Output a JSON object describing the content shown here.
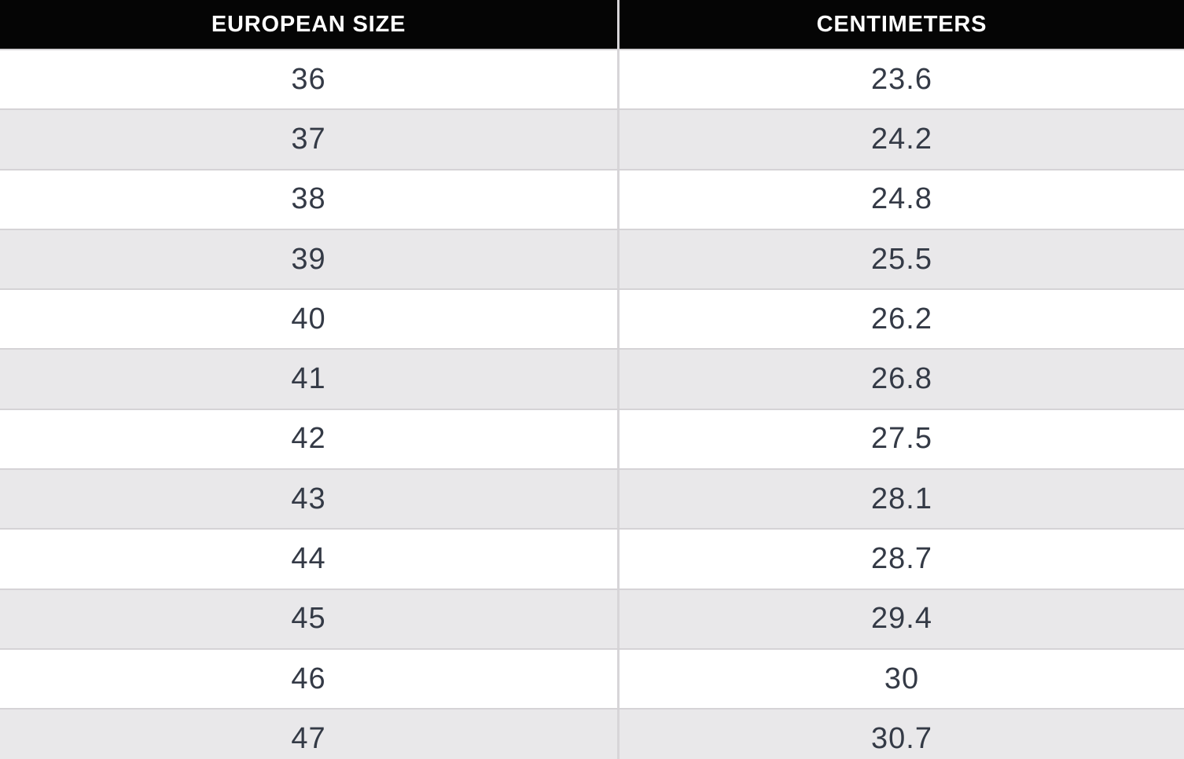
{
  "table": {
    "columns": [
      {
        "label": "EUROPEAN SIZE"
      },
      {
        "label": "CENTIMETERS"
      }
    ],
    "rows": [
      [
        "36",
        "23.6"
      ],
      [
        "37",
        "24.2"
      ],
      [
        "38",
        "24.8"
      ],
      [
        "39",
        "25.5"
      ],
      [
        "40",
        "26.2"
      ],
      [
        "41",
        "26.8"
      ],
      [
        "42",
        "27.5"
      ],
      [
        "43",
        "28.1"
      ],
      [
        "44",
        "28.7"
      ],
      [
        "45",
        "29.4"
      ],
      [
        "46",
        "30"
      ],
      [
        "47",
        "30.7"
      ]
    ]
  },
  "colors": {
    "header_bg": "#050505",
    "header_text": "#ffffff",
    "row_bg": "#ffffff",
    "row_alt_bg": "#e9e8ea",
    "border": "#d5d3d6",
    "cell_text": "#343a46"
  },
  "chart_data": {
    "type": "table",
    "columns": [
      "EUROPEAN SIZE",
      "CENTIMETERS"
    ],
    "rows": [
      [
        36,
        23.6
      ],
      [
        37,
        24.2
      ],
      [
        38,
        24.8
      ],
      [
        39,
        25.5
      ],
      [
        40,
        26.2
      ],
      [
        41,
        26.8
      ],
      [
        42,
        27.5
      ],
      [
        43,
        28.1
      ],
      [
        44,
        28.7
      ],
      [
        45,
        29.4
      ],
      [
        46,
        30
      ],
      [
        47,
        30.7
      ]
    ],
    "layout_hints": {
      "alternating_row_shading": true,
      "header_style": "black-background-white-bold-uppercase",
      "column_split_x_ratio": 0.523,
      "last_row_clipped_at_bottom": true
    }
  }
}
